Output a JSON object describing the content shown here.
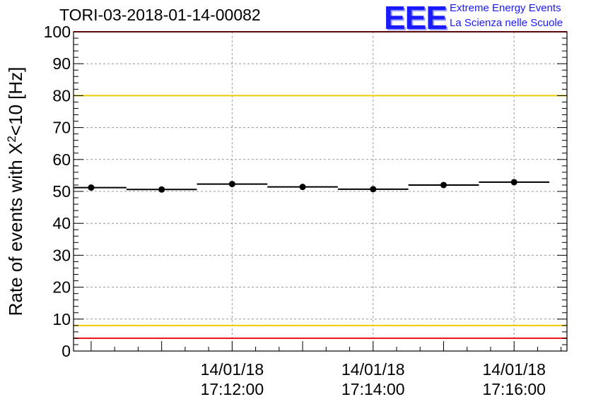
{
  "title": "TORI-03-2018-01-14-00082",
  "logo": {
    "mark": "EEE",
    "line1": "Extreme Energy Events",
    "line2": "La Scienza nelle Scuole"
  },
  "colors": {
    "reference_red": "#ee1111",
    "reference_yellow": "#eecc00",
    "data": "#000000",
    "grid": "#999999"
  },
  "chart_data": {
    "type": "scatter",
    "ylabel": "Rate of events with X<sup>2</sup><10 [Hz]",
    "ylabel_parts": {
      "pre": "Rate of events with X",
      "sup": "2",
      "post": "<10 [Hz]"
    },
    "ylim": [
      0,
      100
    ],
    "yticks": [
      "0",
      "10",
      "20",
      "30",
      "40",
      "50",
      "60",
      "70",
      "80",
      "90",
      "100"
    ],
    "xlim": [
      "17:09:45",
      "17:16:45"
    ],
    "xticks": [
      {
        "x": "17:12:00",
        "date": "14/01/18",
        "time": "17:12:00"
      },
      {
        "x": "17:14:00",
        "date": "14/01/18",
        "time": "17:14:00"
      },
      {
        "x": "17:16:00",
        "date": "14/01/18",
        "time": "17:16:00"
      }
    ],
    "grid": true,
    "bin_width_seconds": 60,
    "points": [
      {
        "x": "17:10:00",
        "y": 51.2
      },
      {
        "x": "17:11:00",
        "y": 50.6
      },
      {
        "x": "17:12:00",
        "y": 52.3
      },
      {
        "x": "17:13:00",
        "y": 51.4
      },
      {
        "x": "17:14:00",
        "y": 50.7
      },
      {
        "x": "17:15:00",
        "y": 52.0
      },
      {
        "x": "17:16:00",
        "y": 52.9
      }
    ],
    "reference_lines": [
      {
        "y": 100,
        "color": "red"
      },
      {
        "y": 80,
        "color": "yellow"
      },
      {
        "y": 8,
        "color": "yellow"
      },
      {
        "y": 4,
        "color": "red"
      }
    ]
  }
}
